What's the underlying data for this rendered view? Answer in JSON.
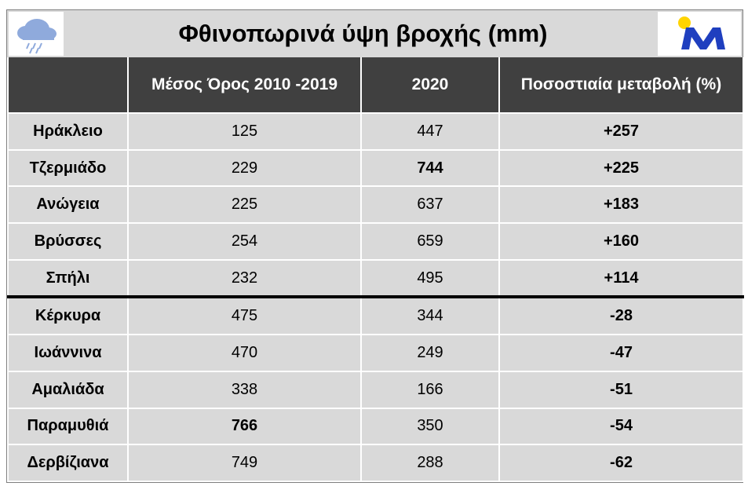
{
  "header": {
    "title": "Φθινοπωρινά ύψη βροχής (mm)"
  },
  "table": {
    "columns": [
      "Μέσος Όρος 2010 -2019",
      "2020",
      "Ποσοστιαία μεταβολή (%)"
    ],
    "rows": [
      [
        "Ηράκλειο",
        125,
        447,
        "+257"
      ],
      [
        "Τζερμιάδο",
        229,
        744,
        "+225"
      ],
      [
        "Ανώγεια",
        225,
        637,
        "+183"
      ],
      [
        "Βρύσσες",
        254,
        659,
        "+160"
      ],
      [
        "Σπήλι",
        232,
        495,
        "+114"
      ],
      [
        "Κέρκυρα",
        475,
        344,
        -28
      ],
      [
        "Ιωάννινα",
        470,
        249,
        -47
      ],
      [
        "Αμαλιάδα",
        338,
        166,
        -51
      ],
      [
        "Παραμυθιά",
        766,
        350,
        -54
      ],
      [
        "Δερβίζιανα",
        749,
        288,
        -62
      ]
    ]
  }
}
